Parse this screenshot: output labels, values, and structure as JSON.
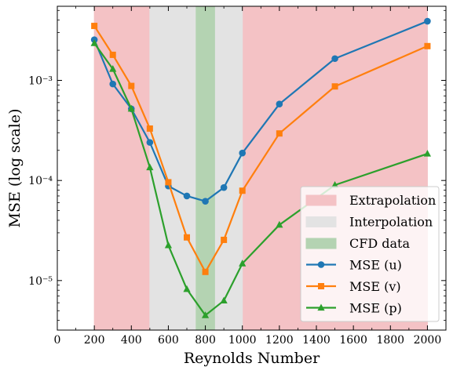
{
  "chart_data": {
    "type": "line",
    "xlabel": "Reynolds Number",
    "ylabel": "MSE (log scale)",
    "y_scale": "log",
    "xlim": [
      0,
      2100
    ],
    "ylim": [
      3.2e-06,
      0.0055
    ],
    "x_ticks": [
      0,
      200,
      400,
      600,
      800,
      1000,
      1200,
      1400,
      1600,
      1800,
      2000
    ],
    "y_ticks": [
      {
        "value": 1e-05,
        "label": "10⁻⁵"
      },
      {
        "value": 0.0001,
        "label": "10⁻⁴"
      },
      {
        "value": 0.001,
        "label": "10⁻³"
      }
    ],
    "grid": false,
    "legend_position": "lower-right",
    "regions": [
      {
        "name": "Extrapolation",
        "ranges": [
          [
            200,
            500
          ],
          [
            1000,
            2000
          ]
        ],
        "color": "#f4c2c5"
      },
      {
        "name": "Interpolation",
        "ranges": [
          [
            500,
            1000
          ]
        ],
        "color": "#e3e3e3"
      },
      {
        "name": "CFD data",
        "ranges": [
          [
            750,
            850
          ]
        ],
        "color": "#b4d3b2"
      }
    ],
    "x": [
      200,
      300,
      400,
      500,
      600,
      700,
      800,
      900,
      1000,
      1200,
      1500,
      2000
    ],
    "series": [
      {
        "name": "MSE (u)",
        "color": "#1f77b4",
        "marker": "circle",
        "values": [
          0.00255,
          0.00092,
          0.00052,
          0.00024,
          8.8e-05,
          7e-05,
          6.2e-05,
          8.5e-05,
          0.000188,
          0.00058,
          0.00165,
          0.0039
        ]
      },
      {
        "name": "MSE (v)",
        "color": "#ff7f0e",
        "marker": "square",
        "values": [
          0.0035,
          0.0018,
          0.00088,
          0.00033,
          9.6e-05,
          2.7e-05,
          1.22e-05,
          2.55e-05,
          7.9e-05,
          0.000295,
          0.00087,
          0.0022
        ]
      },
      {
        "name": "MSE (p)",
        "color": "#2ca02c",
        "marker": "triangle",
        "values": [
          0.00235,
          0.0013,
          0.00052,
          0.000135,
          2.25e-05,
          8.2e-06,
          4.5e-06,
          6.3e-06,
          1.48e-05,
          3.6e-05,
          9e-05,
          0.000185
        ]
      }
    ]
  }
}
